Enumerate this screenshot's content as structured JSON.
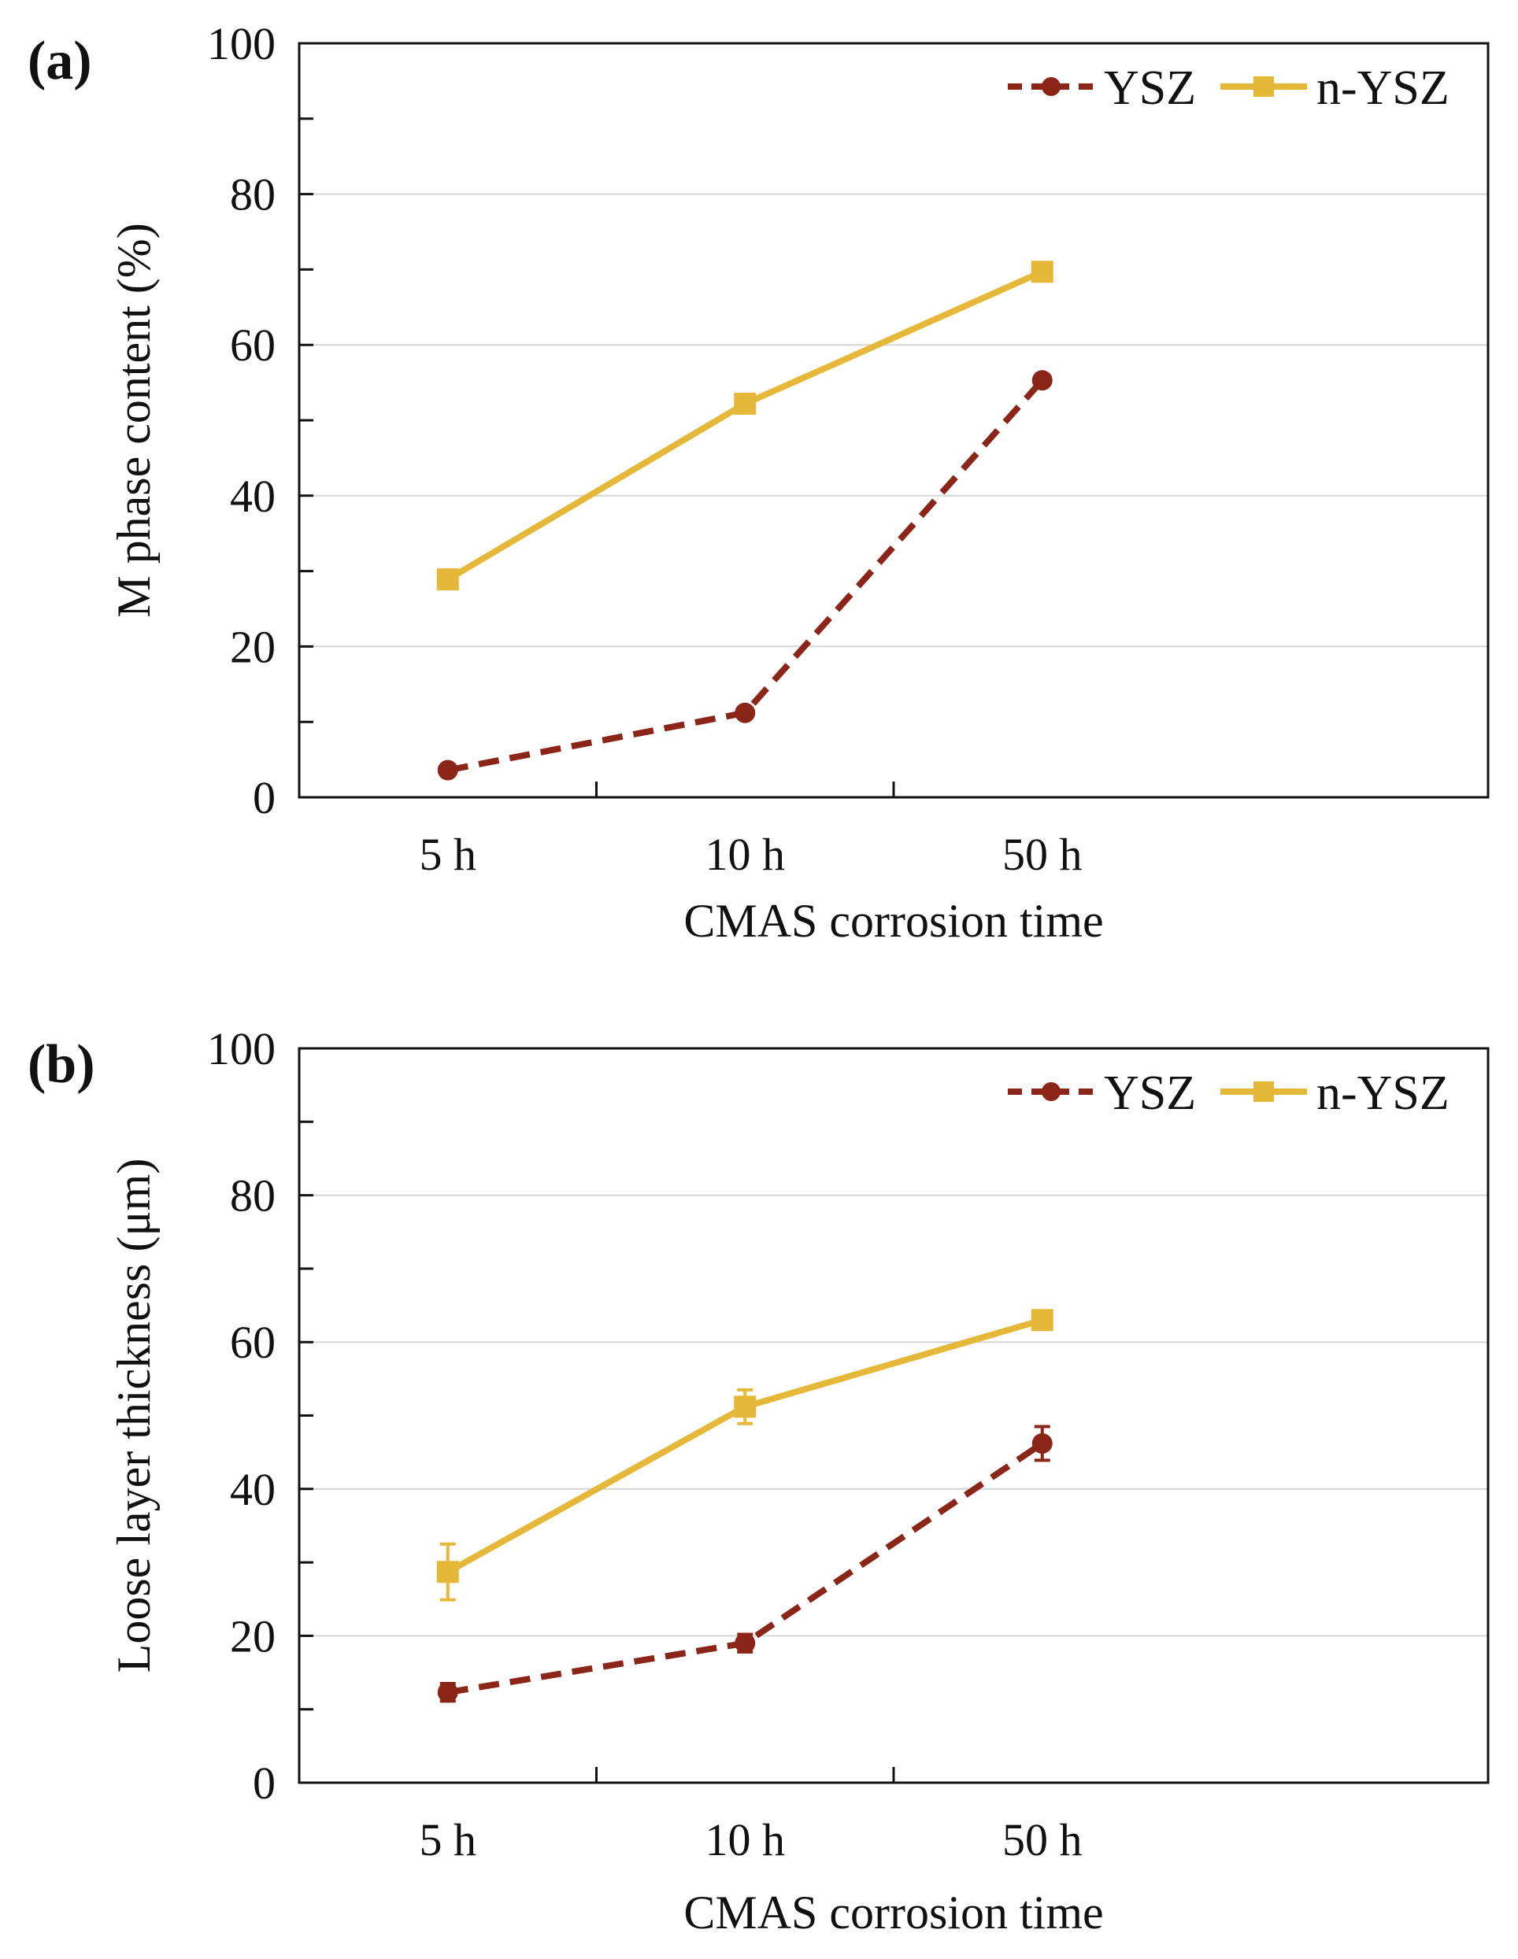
{
  "colors": {
    "ysz": "#8b2518",
    "nysz": "#e6b83a",
    "grid": "#d6d6d6",
    "axis": "#111111"
  },
  "chart_data": [
    {
      "panel": "(a)",
      "type": "line",
      "categories": [
        "5 h",
        "10 h",
        "50 h"
      ],
      "xlabel": "CMAS corrosion time",
      "ylabel": "M phase content (%)",
      "ylim": [
        0,
        100
      ],
      "yticks": [
        "0",
        "20",
        "40",
        "60",
        "80",
        "100"
      ],
      "legend_position": "top-right",
      "series": [
        {
          "name": "YSZ",
          "values": [
            3.6,
            11.2,
            55.3
          ],
          "marker": "circle",
          "dashed": true,
          "color": "#8b2518"
        },
        {
          "name": "n-YSZ",
          "values": [
            28.9,
            52.2,
            69.7
          ],
          "marker": "square",
          "dashed": false,
          "color": "#e6b83a"
        }
      ]
    },
    {
      "panel": "(b)",
      "type": "line",
      "categories": [
        "5 h",
        "10 h",
        "50 h"
      ],
      "xlabel": "CMAS corrosion time",
      "ylabel": "Loose layer thickness (μm)",
      "ylim": [
        0,
        100
      ],
      "yticks": [
        "0",
        "20",
        "40",
        "60",
        "80",
        "100"
      ],
      "legend_position": "top-right",
      "series": [
        {
          "name": "YSZ",
          "values": [
            12.3,
            19.0,
            46.2
          ],
          "errors": [
            1.2,
            1.2,
            2.3
          ],
          "marker": "circle",
          "dashed": true,
          "color": "#8b2518"
        },
        {
          "name": "n-YSZ",
          "values": [
            28.7,
            51.2,
            63.0
          ],
          "errors": [
            3.8,
            2.3,
            1.2
          ],
          "marker": "square",
          "dashed": false,
          "color": "#e6b83a"
        }
      ]
    }
  ]
}
